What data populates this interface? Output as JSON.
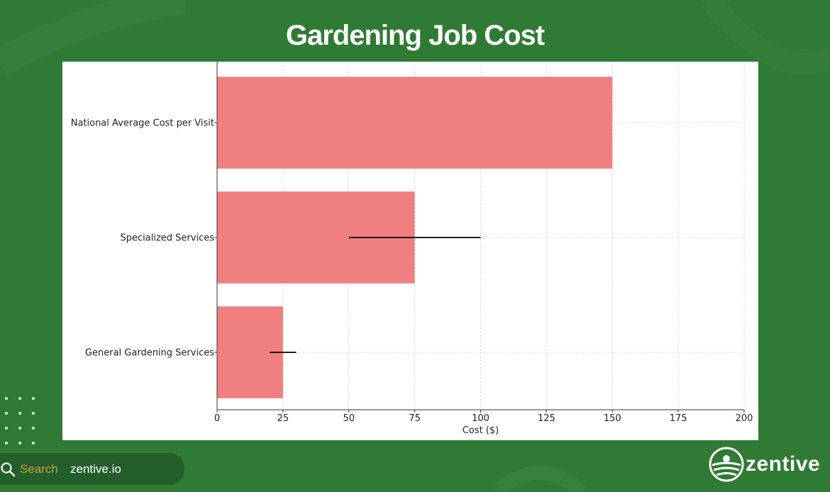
{
  "title": "Gardening Job Cost",
  "chart_data": {
    "type": "bar",
    "orientation": "horizontal",
    "categories": [
      "National Average Cost per Visit",
      "Specialized Services",
      "General Gardening Services"
    ],
    "values": [
      150,
      75,
      25
    ],
    "error_ranges": [
      null,
      [
        50,
        100
      ],
      [
        20,
        30
      ]
    ],
    "xlabel": "Cost ($)",
    "ylabel": "",
    "xlim": [
      0,
      200
    ],
    "xticks": [
      0,
      25,
      50,
      75,
      100,
      125,
      150,
      175,
      200
    ],
    "grid": true,
    "bar_color": "#f08080",
    "error_color": "#000000"
  },
  "footer": {
    "search_word": "Search",
    "search_domain": "zentive.io",
    "logo_text": "zentive"
  },
  "colors": {
    "background": "#2f7a34",
    "accent": "#c9a23c"
  }
}
